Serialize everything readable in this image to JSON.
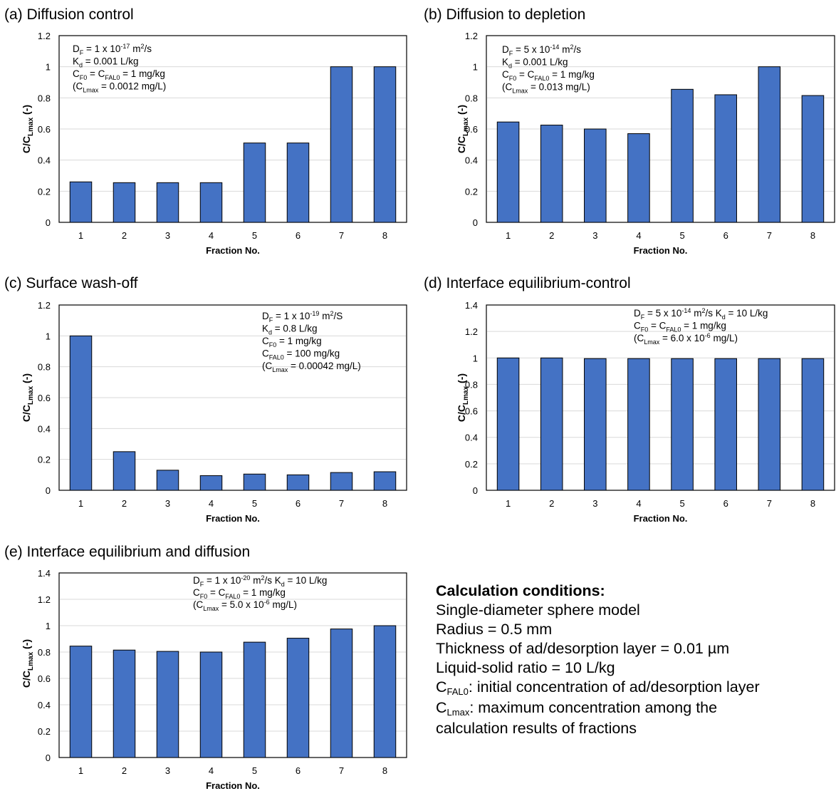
{
  "chart_data": [
    {
      "panel": "a",
      "type": "bar",
      "title": "(a) Diffusion control",
      "xlabel": "Fraction No.",
      "ylabel": "C/C_Lmax (-)",
      "categories": [
        "1",
        "2",
        "3",
        "4",
        "5",
        "6",
        "7",
        "8"
      ],
      "values": [
        0.26,
        0.255,
        0.255,
        0.255,
        0.51,
        0.51,
        1.0,
        1.0
      ],
      "ylim": [
        0,
        1.2
      ],
      "yticks": [
        "0",
        "0.2",
        "0.4",
        "0.6",
        "0.8",
        "1",
        "1.2"
      ],
      "grid": true,
      "annotation_lines": [
        [
          "D",
          "F",
          " = 1 x 10",
          "-17",
          " m",
          "2",
          "/s"
        ],
        [
          "K",
          "d",
          " = 0.001  L/kg"
        ],
        [
          "C",
          "F0",
          " = C",
          "FAL0",
          " = 1 mg/kg"
        ],
        [
          "(C",
          "Lmax",
          " = 0.0012 mg/L)"
        ]
      ]
    },
    {
      "panel": "b",
      "type": "bar",
      "title": "(b) Diffusion to depletion",
      "xlabel": "Fraction No.",
      "ylabel": "C/C_Lmax (-)",
      "categories": [
        "1",
        "2",
        "3",
        "4",
        "5",
        "6",
        "7",
        "8"
      ],
      "values": [
        0.645,
        0.625,
        0.6,
        0.57,
        0.855,
        0.82,
        1.0,
        0.815
      ],
      "ylim": [
        0,
        1.2
      ],
      "yticks": [
        "0",
        "0.2",
        "0.4",
        "0.6",
        "0.8",
        "1",
        "1.2"
      ],
      "grid": true,
      "annotation_lines": [
        [
          "D",
          "F",
          " = 5 x 10",
          "-14",
          " m",
          "2",
          "/s"
        ],
        [
          "K",
          "d",
          " = 0.001  L/kg"
        ],
        [
          "C",
          "F0",
          " = C",
          "FAL0",
          " = 1 mg/kg"
        ],
        [
          "(C",
          "Lmax",
          " = 0.013 mg/L)"
        ]
      ]
    },
    {
      "panel": "c",
      "type": "bar",
      "title": "(c) Surface wash-off",
      "xlabel": "Fraction No.",
      "ylabel": "C/C_Lmax (-)",
      "categories": [
        "1",
        "2",
        "3",
        "4",
        "5",
        "6",
        "7",
        "8"
      ],
      "values": [
        1.0,
        0.25,
        0.13,
        0.095,
        0.105,
        0.1,
        0.115,
        0.12
      ],
      "ylim": [
        0,
        1.2
      ],
      "yticks": [
        "0",
        "0.2",
        "0.4",
        "0.6",
        "0.8",
        "1",
        "1.2"
      ],
      "grid": true,
      "annotation_lines": [
        [
          "D",
          "F",
          " = 1 x 10",
          "-19",
          " m",
          "2",
          "/S"
        ],
        [
          "K",
          "d",
          " = 0.8 L/kg"
        ],
        [
          "C",
          "F0",
          " = 1 mg/kg"
        ],
        [
          "C",
          "FAL0",
          " = 100 mg/kg"
        ],
        [
          "(C",
          "Lmax",
          " = 0.00042  mg/L)"
        ]
      ]
    },
    {
      "panel": "d",
      "type": "bar",
      "title": "(d) Interface equilibrium-control",
      "xlabel": "Fraction No.",
      "ylabel": "C/C_Lmax (-)",
      "categories": [
        "1",
        "2",
        "3",
        "4",
        "5",
        "6",
        "7",
        "8"
      ],
      "values": [
        1.0,
        1.0,
        0.995,
        0.995,
        0.995,
        0.995,
        0.995,
        0.995
      ],
      "ylim": [
        0,
        1.4
      ],
      "yticks": [
        "0",
        "0.2",
        "0.4",
        "0.6",
        "0.8",
        "1",
        "1.2",
        "1.4"
      ],
      "grid": true,
      "annotation_lines": [
        [
          "D",
          "F",
          " = 5 x 10",
          "-14",
          " m",
          "2",
          "/s      K",
          "d",
          " = 10 L/kg"
        ],
        [
          "C",
          "F0",
          " = C",
          "FAL0",
          " = 1 mg/kg"
        ],
        [
          "(C",
          "Lmax",
          " = 6.0 x 10",
          "-6",
          " mg/L)"
        ]
      ]
    },
    {
      "panel": "e",
      "type": "bar",
      "title": "(e) Interface equilibrium and diffusion",
      "xlabel": "Fraction No.",
      "ylabel": "C/C_Lmax (-)",
      "categories": [
        "1",
        "2",
        "3",
        "4",
        "5",
        "6",
        "7",
        "8"
      ],
      "values": [
        0.845,
        0.815,
        0.805,
        0.8,
        0.875,
        0.905,
        0.975,
        1.0
      ],
      "ylim": [
        0,
        1.4
      ],
      "yticks": [
        "0",
        "0.2",
        "0.4",
        "0.6",
        "0.8",
        "1",
        "1.2",
        "1.4"
      ],
      "grid": true,
      "annotation_lines": [
        [
          "D",
          "F",
          " = 1 x 10",
          "-20",
          " m",
          "2",
          "/s      K",
          "d",
          " = 10 L/kg"
        ],
        [
          "C",
          "F0",
          " = C",
          "FAL0",
          " = 1 mg/kg"
        ],
        [
          "(C",
          "Lmax",
          " = 5.0 x 10",
          "-6",
          " mg/L)"
        ]
      ]
    }
  ],
  "style": {
    "bar_color": "#4472C4",
    "bar_edge": "#000000",
    "grid_color": "#D9D9D9"
  },
  "conditions": {
    "title": "Calculation conditions:",
    "lines": [
      "Single-diameter sphere model",
      "Radius = 0.5 mm",
      "Thickness of ad/desorption layer = 0.01 µm",
      "Liquid-solid ratio = 10 L/kg"
    ],
    "cfal0_sub": "FAL0",
    "cfal0_text": ": initial concentration of ad/desorption layer",
    "clmax_sub": "Lmax",
    "clmax_text": ": maximum concentration among the",
    "clmax_text2": "calculation results of fractions"
  }
}
